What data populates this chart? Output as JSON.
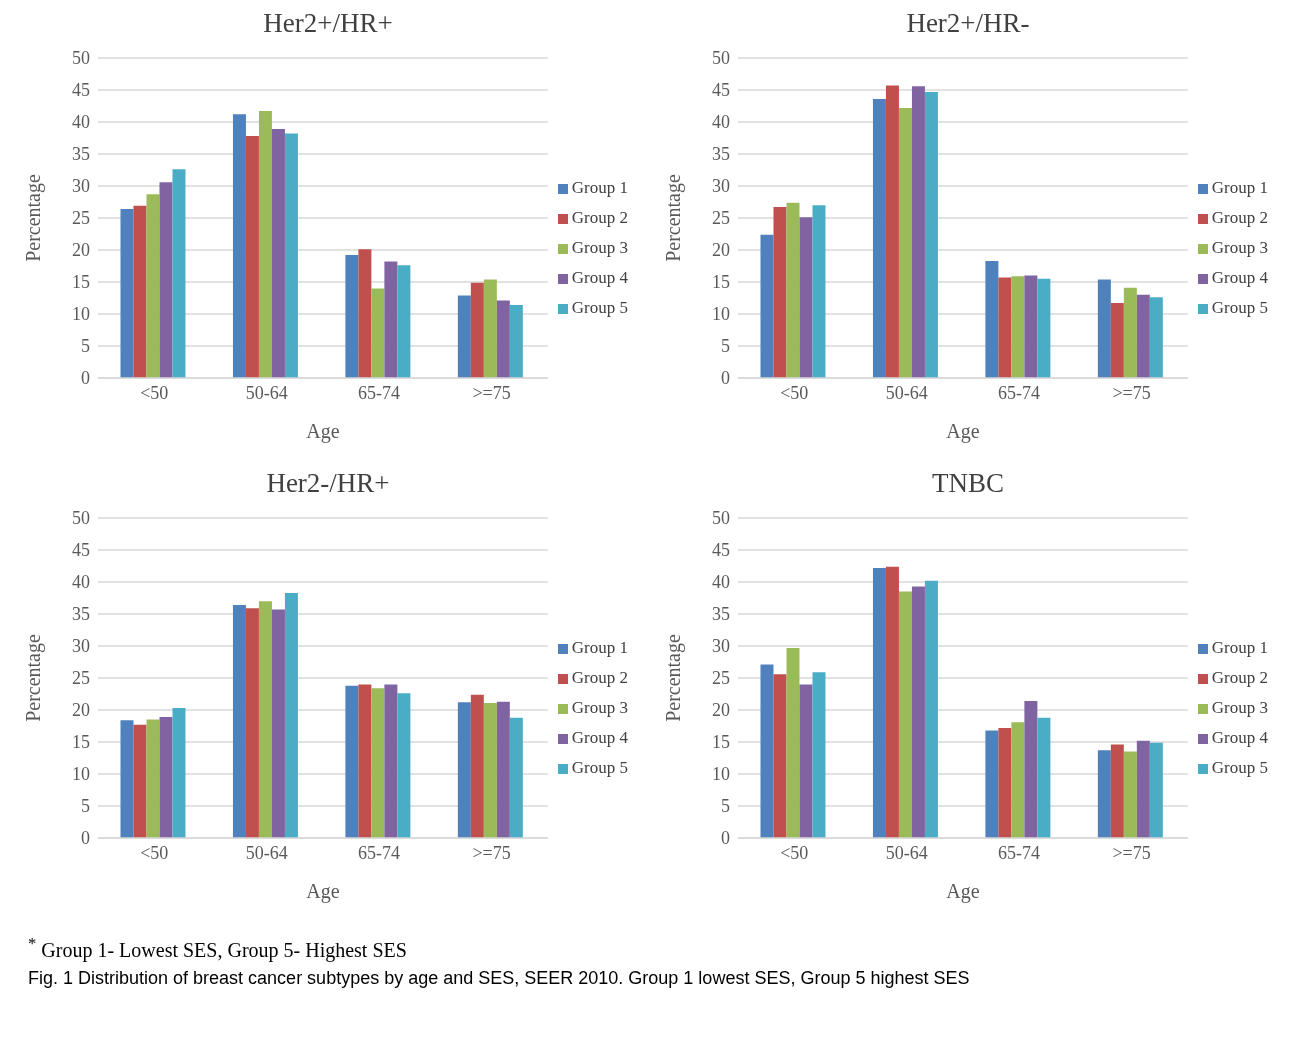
{
  "chart_data": [
    {
      "type": "bar",
      "title": "Her2+/HR+",
      "xlabel": "Age",
      "ylabel": "Percentage",
      "categories": [
        "<50",
        "50-64",
        "65-74",
        ">=75"
      ],
      "ylim": [
        0,
        50
      ],
      "yticks": [
        0,
        5,
        10,
        15,
        20,
        25,
        30,
        35,
        40,
        45,
        50
      ],
      "grid": "y",
      "legend": "right",
      "series": [
        {
          "name": "Group 1",
          "color": "#4f81bd",
          "values": [
            26.4,
            41.2,
            19.2,
            12.9
          ]
        },
        {
          "name": "Group 2",
          "color": "#c0504d",
          "values": [
            26.9,
            37.8,
            20.1,
            14.9
          ]
        },
        {
          "name": "Group 3",
          "color": "#9bbb59",
          "values": [
            28.7,
            41.7,
            14.0,
            15.4
          ]
        },
        {
          "name": "Group 4",
          "color": "#8064a2",
          "values": [
            30.6,
            38.9,
            18.2,
            12.1
          ]
        },
        {
          "name": "Group 5",
          "color": "#4bacc6",
          "values": [
            32.6,
            38.2,
            17.6,
            11.4
          ]
        }
      ]
    },
    {
      "type": "bar",
      "title": "Her2+/HR-",
      "xlabel": "Age",
      "ylabel": "Percentage",
      "categories": [
        "<50",
        "50-64",
        "65-74",
        ">=75"
      ],
      "ylim": [
        0,
        50
      ],
      "yticks": [
        0,
        5,
        10,
        15,
        20,
        25,
        30,
        35,
        40,
        45,
        50
      ],
      "grid": "y",
      "legend": "right",
      "series": [
        {
          "name": "Group 1",
          "color": "#4f81bd",
          "values": [
            22.4,
            43.6,
            18.3,
            15.4
          ]
        },
        {
          "name": "Group 2",
          "color": "#c0504d",
          "values": [
            26.7,
            45.7,
            15.7,
            11.7
          ]
        },
        {
          "name": "Group 3",
          "color": "#9bbb59",
          "values": [
            27.4,
            42.2,
            15.9,
            14.1
          ]
        },
        {
          "name": "Group 4",
          "color": "#8064a2",
          "values": [
            25.1,
            45.6,
            16.0,
            13.0
          ]
        },
        {
          "name": "Group 5",
          "color": "#4bacc6",
          "values": [
            27.0,
            44.7,
            15.5,
            12.6
          ]
        }
      ]
    },
    {
      "type": "bar",
      "title": "Her2-/HR+",
      "xlabel": "Age",
      "ylabel": "Percentage",
      "categories": [
        "<50",
        "50-64",
        "65-74",
        ">=75"
      ],
      "ylim": [
        0,
        50
      ],
      "yticks": [
        0,
        5,
        10,
        15,
        20,
        25,
        30,
        35,
        40,
        45,
        50
      ],
      "grid": "y",
      "legend": "right",
      "series": [
        {
          "name": "Group 1",
          "color": "#4f81bd",
          "values": [
            18.4,
            36.4,
            23.8,
            21.2
          ]
        },
        {
          "name": "Group 2",
          "color": "#c0504d",
          "values": [
            17.7,
            35.9,
            24.0,
            22.4
          ]
        },
        {
          "name": "Group 3",
          "color": "#9bbb59",
          "values": [
            18.5,
            37.0,
            23.4,
            21.1
          ]
        },
        {
          "name": "Group 4",
          "color": "#8064a2",
          "values": [
            18.9,
            35.7,
            24.0,
            21.3
          ]
        },
        {
          "name": "Group 5",
          "color": "#4bacc6",
          "values": [
            20.3,
            38.3,
            22.6,
            18.8
          ]
        }
      ]
    },
    {
      "type": "bar",
      "title": "TNBC",
      "xlabel": "Age",
      "ylabel": "Percentage",
      "categories": [
        "<50",
        "50-64",
        "65-74",
        ">=75"
      ],
      "ylim": [
        0,
        50
      ],
      "yticks": [
        0,
        5,
        10,
        15,
        20,
        25,
        30,
        35,
        40,
        45,
        50
      ],
      "grid": "y",
      "legend": "right",
      "annotations": [
        "$^{*}$ Group 1- Lowest SES, Group 5- Highest SES",
        "Fig. 1  Distribution of breast cancer subtypes by age and SES, SEER 2010. Group 1 lowest SES, Group 5 highest SES"
      ],
      "series": [
        {
          "name": "Group 1",
          "color": "#4f81bd",
          "values": [
            27.1,
            42.2,
            16.8,
            13.7
          ]
        },
        {
          "name": "Group 2",
          "color": "#c0504d",
          "values": [
            25.6,
            42.4,
            17.2,
            14.6
          ]
        },
        {
          "name": "Group 3",
          "color": "#9bbb59",
          "values": [
            29.7,
            38.5,
            18.1,
            13.5
          ]
        },
        {
          "name": "Group 4",
          "color": "#8064a2",
          "values": [
            24.0,
            39.3,
            21.4,
            15.2
          ]
        },
        {
          "name": "Group 5",
          "color": "#4bacc6",
          "values": [
            25.9,
            40.2,
            18.8,
            14.9
          ]
        }
      ]
    }
  ]
}
